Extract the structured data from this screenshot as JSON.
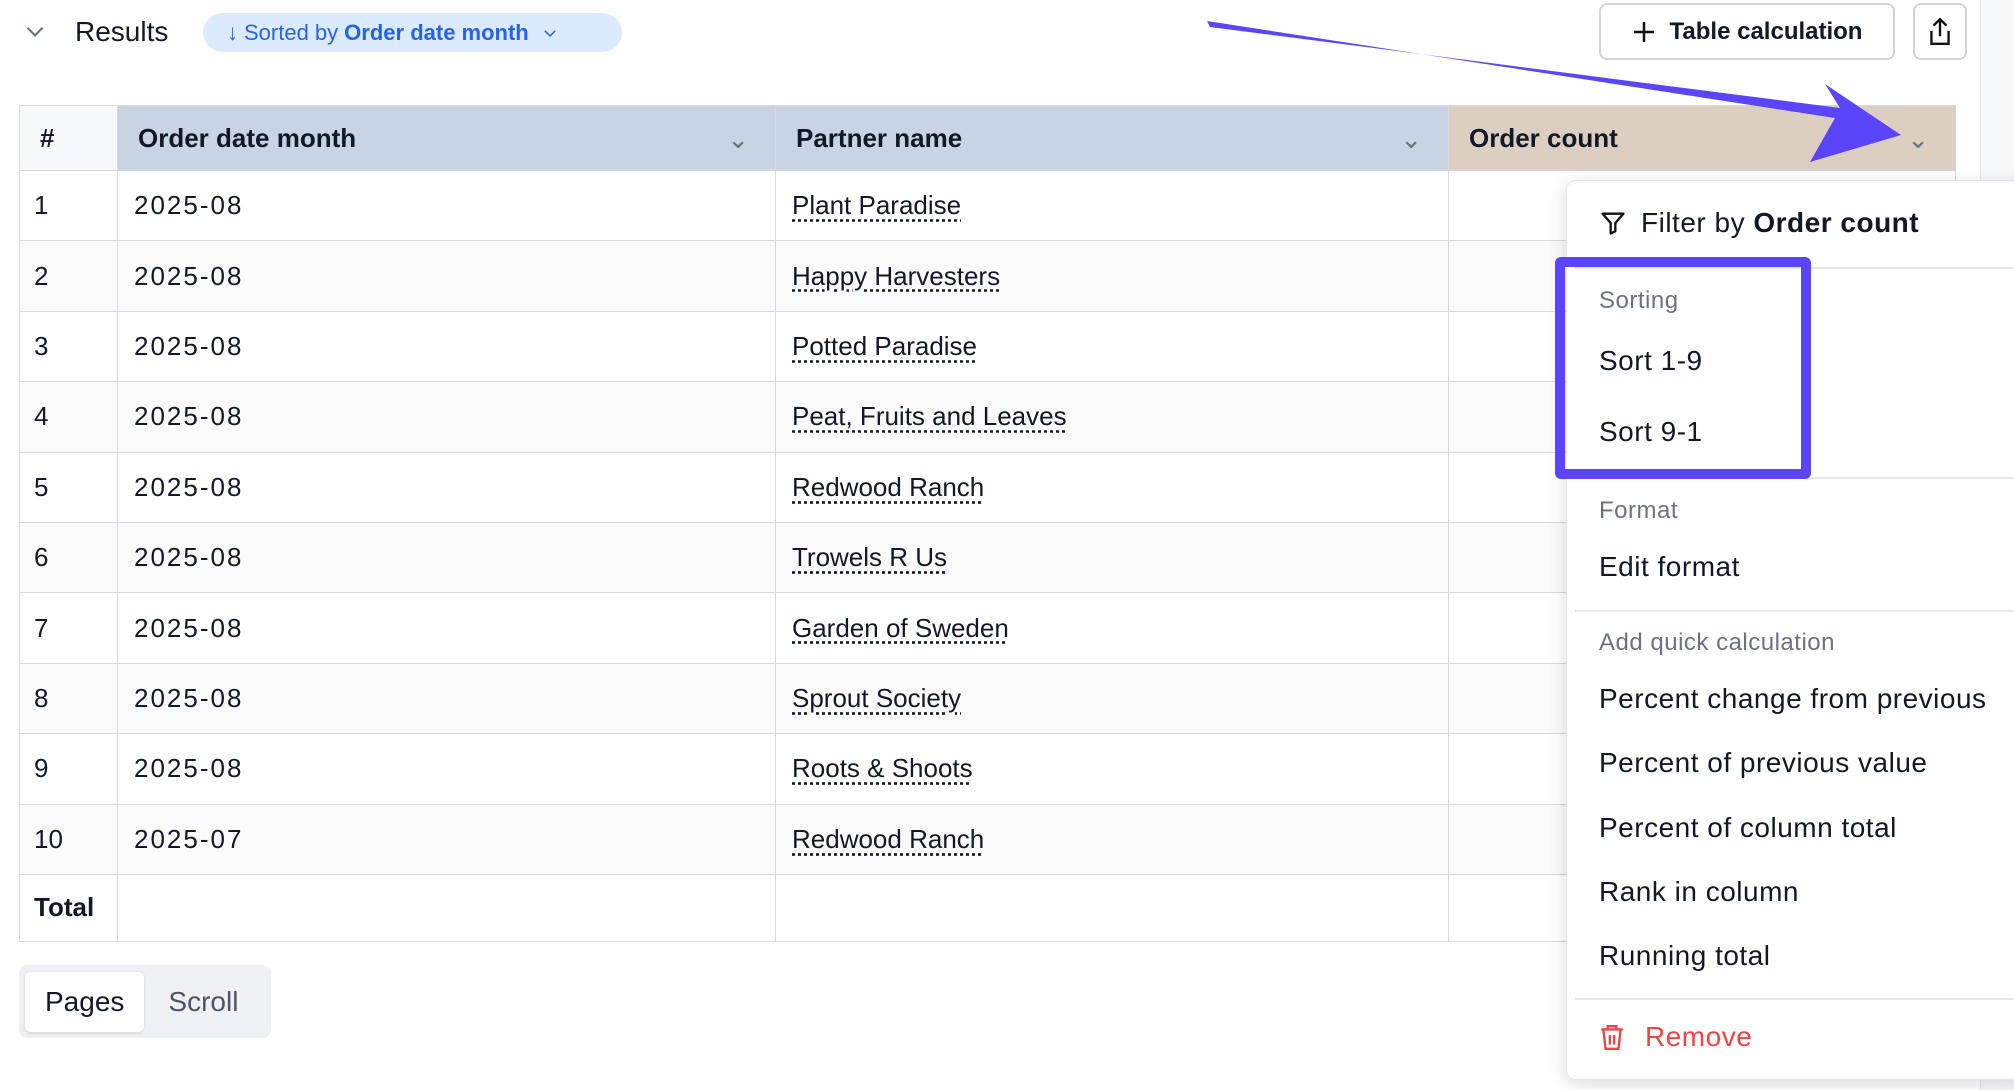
{
  "header": {
    "title": "Results",
    "sort_prefix": "Sorted by",
    "sort_field": "Order date month",
    "table_calc_label": "Table calculation"
  },
  "table": {
    "columns": [
      "#",
      "Order date month",
      "Partner name",
      "Order count"
    ],
    "rows": [
      {
        "n": "1",
        "date": "2025-08",
        "partner": "Plant Paradise"
      },
      {
        "n": "2",
        "date": "2025-08",
        "partner": "Happy Harvesters"
      },
      {
        "n": "3",
        "date": "2025-08",
        "partner": "Potted Paradise"
      },
      {
        "n": "4",
        "date": "2025-08",
        "partner": "Peat, Fruits and Leaves"
      },
      {
        "n": "5",
        "date": "2025-08",
        "partner": "Redwood Ranch"
      },
      {
        "n": "6",
        "date": "2025-08",
        "partner": "Trowels R Us"
      },
      {
        "n": "7",
        "date": "2025-08",
        "partner": "Garden of Sweden"
      },
      {
        "n": "8",
        "date": "2025-08",
        "partner": "Sprout Society"
      },
      {
        "n": "9",
        "date": "2025-08",
        "partner": "Roots & Shoots"
      },
      {
        "n": "10",
        "date": "2025-07",
        "partner": "Redwood Ranch"
      }
    ],
    "total_label": "Total"
  },
  "pagination": {
    "pages": "Pages",
    "scroll": "Scroll",
    "active": "Pages"
  },
  "menu": {
    "filter_prefix": "Filter by",
    "filter_field": "Order count",
    "sorting_label": "Sorting",
    "sort_asc": "Sort 1-9",
    "sort_desc": "Sort 9-1",
    "format_label": "Format",
    "edit_format": "Edit format",
    "quick_calc_label": "Add quick calculation",
    "quick_calcs": [
      "Percent change from previous",
      "Percent of previous value",
      "Percent of column total",
      "Rank in column",
      "Running total"
    ],
    "remove": "Remove"
  },
  "colors": {
    "accent": "#2563eb",
    "annotation": "#5b45fb",
    "remove": "#ef4444",
    "dimension_header": "#c8d4e3",
    "metric_header": "#dccfc2"
  }
}
